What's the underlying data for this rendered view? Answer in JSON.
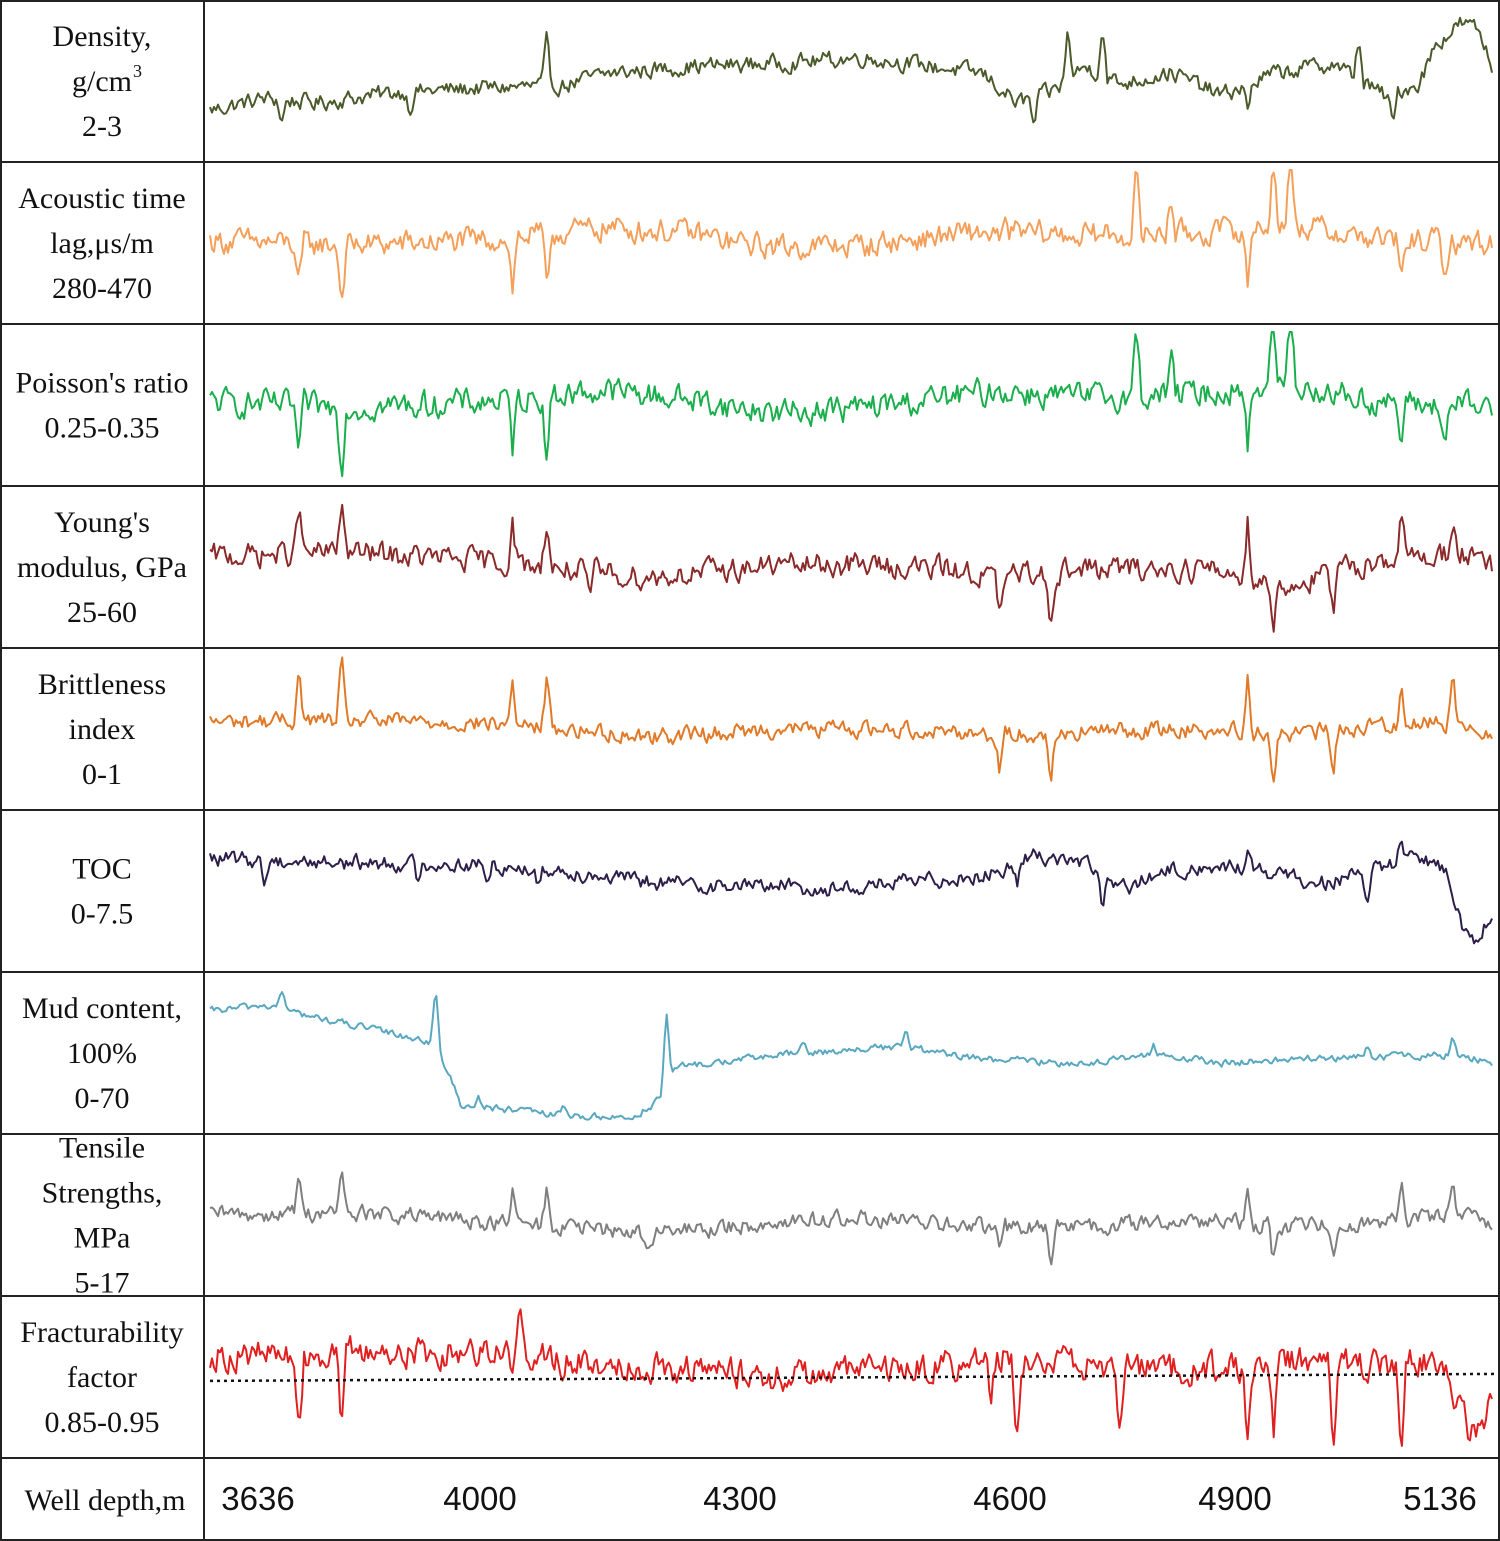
{
  "chart_data": {
    "type": "line",
    "title": "",
    "xlabel": "Well depth,m",
    "xlim": [
      3636,
      5136
    ],
    "x_ticks": [
      {
        "label": "3636",
        "value": 3636
      },
      {
        "label": "4000",
        "value": 4000
      },
      {
        "label": "4300",
        "value": 4300
      },
      {
        "label": "4600",
        "value": 4600
      },
      {
        "label": "4900",
        "value": 4900
      },
      {
        "label": "5136",
        "value": 5136
      }
    ],
    "panels": [
      {
        "id": "density",
        "label_lines": [
          "Density,",
          "g/cm",
          "2-3"
        ],
        "unit_superscript": "3",
        "range": [
          2,
          3
        ],
        "color": "#4a5a2a",
        "profile": [
          [
            3636,
            2.3
          ],
          [
            3700,
            2.38
          ],
          [
            3760,
            2.35
          ],
          [
            3850,
            2.42
          ],
          [
            3950,
            2.45
          ],
          [
            4050,
            2.47
          ],
          [
            4100,
            2.55
          ],
          [
            4200,
            2.6
          ],
          [
            4300,
            2.62
          ],
          [
            4400,
            2.66
          ],
          [
            4480,
            2.6
          ],
          [
            4540,
            2.55
          ],
          [
            4580,
            2.35
          ],
          [
            4620,
            2.42
          ],
          [
            4660,
            2.6
          ],
          [
            4700,
            2.48
          ],
          [
            4760,
            2.56
          ],
          [
            4820,
            2.4
          ],
          [
            4880,
            2.55
          ],
          [
            4950,
            2.62
          ],
          [
            5010,
            2.4
          ],
          [
            5050,
            2.48
          ],
          [
            5070,
            2.75
          ],
          [
            5100,
            2.9
          ],
          [
            5120,
            2.85
          ],
          [
            5136,
            2.6
          ]
        ],
        "noise": 0.05,
        "spikes": [
          [
            3720,
            -0.15
          ],
          [
            3870,
            -0.12
          ],
          [
            4030,
            0.3
          ],
          [
            4600,
            -0.2
          ],
          [
            4640,
            0.35
          ],
          [
            4680,
            0.35
          ],
          [
            4850,
            -0.18
          ],
          [
            4980,
            0.3
          ],
          [
            5020,
            -0.25
          ]
        ]
      },
      {
        "id": "acoustic",
        "label_lines": [
          "Acoustic time",
          "lag,μs/m",
          "280-470"
        ],
        "range": [
          280,
          470
        ],
        "color": "#f4a05a",
        "profile": [
          [
            3636,
            378
          ],
          [
            3800,
            372
          ],
          [
            3950,
            378
          ],
          [
            4100,
            395
          ],
          [
            4200,
            388
          ],
          [
            4250,
            375
          ],
          [
            4300,
            370
          ],
          [
            4400,
            372
          ],
          [
            4500,
            385
          ],
          [
            4560,
            390
          ],
          [
            4650,
            385
          ],
          [
            4800,
            388
          ],
          [
            4900,
            400
          ],
          [
            5000,
            380
          ],
          [
            5136,
            375
          ]
        ],
        "noise": 14,
        "spikes": [
          [
            3740,
            -60
          ],
          [
            3790,
            -75
          ],
          [
            3990,
            -70
          ],
          [
            4030,
            -75
          ],
          [
            4560,
            40
          ],
          [
            4560,
            -55
          ],
          [
            4720,
            80
          ],
          [
            4760,
            55
          ],
          [
            4850,
            -75
          ],
          [
            4880,
            90
          ],
          [
            4900,
            100
          ],
          [
            5030,
            -60
          ],
          [
            5080,
            -55
          ]
        ]
      },
      {
        "id": "poisson",
        "label_lines": [
          "Poisson's ratio",
          "0.25-0.35"
        ],
        "range": [
          0.25,
          0.35
        ],
        "color": "#1aae4c",
        "profile": [
          [
            3636,
            0.302
          ],
          [
            3800,
            0.298
          ],
          [
            3950,
            0.302
          ],
          [
            4100,
            0.31
          ],
          [
            4200,
            0.304
          ],
          [
            4250,
            0.298
          ],
          [
            4300,
            0.295
          ],
          [
            4400,
            0.298
          ],
          [
            4500,
            0.305
          ],
          [
            4560,
            0.31
          ],
          [
            4650,
            0.305
          ],
          [
            4800,
            0.308
          ],
          [
            4900,
            0.315
          ],
          [
            5000,
            0.302
          ],
          [
            5136,
            0.298
          ]
        ],
        "noise": 0.008,
        "spikes": [
          [
            3740,
            -0.035
          ],
          [
            3790,
            -0.04
          ],
          [
            3990,
            -0.035
          ],
          [
            4030,
            -0.04
          ],
          [
            4560,
            0.025
          ],
          [
            4560,
            -0.025
          ],
          [
            4720,
            0.045
          ],
          [
            4760,
            0.03
          ],
          [
            4850,
            -0.04
          ],
          [
            4880,
            0.05
          ],
          [
            4900,
            0.055
          ],
          [
            5030,
            -0.03
          ],
          [
            5080,
            -0.03
          ]
        ]
      },
      {
        "id": "young",
        "label_lines": [
          "Young's",
          "modulus, GPa",
          "25-60"
        ],
        "range": [
          25,
          60
        ],
        "color": "#8b2a2a",
        "profile": [
          [
            3636,
            45
          ],
          [
            3800,
            46
          ],
          [
            3950,
            44
          ],
          [
            4050,
            42
          ],
          [
            4150,
            40
          ],
          [
            4250,
            42
          ],
          [
            4300,
            43
          ],
          [
            4400,
            43
          ],
          [
            4500,
            42
          ],
          [
            4560,
            40
          ],
          [
            4650,
            42
          ],
          [
            4800,
            42
          ],
          [
            4900,
            38
          ],
          [
            5000,
            44
          ],
          [
            5100,
            46
          ],
          [
            5136,
            42
          ]
        ],
        "noise": 2.5,
        "spikes": [
          [
            3740,
            12
          ],
          [
            3790,
            14
          ],
          [
            3990,
            10
          ],
          [
            4030,
            12
          ],
          [
            4080,
            -8
          ],
          [
            4560,
            -10
          ],
          [
            4620,
            -12
          ],
          [
            4850,
            14
          ],
          [
            4880,
            -12
          ],
          [
            4950,
            -10
          ],
          [
            5030,
            10
          ],
          [
            5090,
            8
          ]
        ]
      },
      {
        "id": "brittleness",
        "label_lines": [
          "Brittleness",
          "index",
          "0-1"
        ],
        "range": [
          0,
          1
        ],
        "color": "#e07a28",
        "profile": [
          [
            3636,
            0.55
          ],
          [
            3800,
            0.56
          ],
          [
            3950,
            0.54
          ],
          [
            4050,
            0.5
          ],
          [
            4150,
            0.45
          ],
          [
            4250,
            0.48
          ],
          [
            4300,
            0.5
          ],
          [
            4400,
            0.5
          ],
          [
            4500,
            0.49
          ],
          [
            4560,
            0.46
          ],
          [
            4650,
            0.48
          ],
          [
            4800,
            0.5
          ],
          [
            4900,
            0.46
          ],
          [
            5000,
            0.52
          ],
          [
            5100,
            0.55
          ],
          [
            5136,
            0.48
          ]
        ],
        "noise": 0.05,
        "spikes": [
          [
            3740,
            0.35
          ],
          [
            3790,
            0.4
          ],
          [
            3990,
            0.3
          ],
          [
            4030,
            0.35
          ],
          [
            4560,
            -0.25
          ],
          [
            4620,
            -0.35
          ],
          [
            4850,
            0.4
          ],
          [
            4880,
            -0.35
          ],
          [
            4950,
            -0.3
          ],
          [
            5030,
            0.3
          ],
          [
            5090,
            0.3
          ]
        ]
      },
      {
        "id": "toc",
        "label_lines": [
          "TOC",
          "0-7.5"
        ],
        "range": [
          0,
          7.5
        ],
        "color": "#2e1f4a",
        "profile": [
          [
            3636,
            5.4
          ],
          [
            3800,
            5.2
          ],
          [
            3950,
            5.1
          ],
          [
            4050,
            4.8
          ],
          [
            4150,
            4.2
          ],
          [
            4250,
            4.0
          ],
          [
            4300,
            4.1
          ],
          [
            4350,
            3.8
          ],
          [
            4450,
            4.2
          ],
          [
            4550,
            4.6
          ],
          [
            4600,
            5.6
          ],
          [
            4660,
            5.2
          ],
          [
            4700,
            3.8
          ],
          [
            4760,
            4.8
          ],
          [
            4850,
            5.0
          ],
          [
            4900,
            4.4
          ],
          [
            4950,
            4.2
          ],
          [
            5000,
            4.8
          ],
          [
            5050,
            5.5
          ],
          [
            5080,
            5.0
          ],
          [
            5100,
            2.0
          ],
          [
            5120,
            1.0
          ],
          [
            5136,
            2.8
          ]
        ],
        "noise": 0.35,
        "spikes": [
          [
            3700,
            -1.2
          ],
          [
            3880,
            -1.0
          ],
          [
            3960,
            -1.0
          ],
          [
            4020,
            -1.0
          ],
          [
            4580,
            -1.2
          ],
          [
            4680,
            -1.5
          ],
          [
            4850,
            1.0
          ],
          [
            4990,
            -1.3
          ],
          [
            5030,
            1.5
          ]
        ]
      },
      {
        "id": "mud",
        "label_lines": [
          "Mud content,",
          "100%",
          "0-70"
        ],
        "range": [
          0,
          70
        ],
        "color": "#5aa8c0",
        "profile": [
          [
            3636,
            55
          ],
          [
            3700,
            58
          ],
          [
            3760,
            52
          ],
          [
            3830,
            46
          ],
          [
            3900,
            40
          ],
          [
            3930,
            10
          ],
          [
            3980,
            8
          ],
          [
            4050,
            5
          ],
          [
            4130,
            4
          ],
          [
            4160,
            12
          ],
          [
            4180,
            28
          ],
          [
            4220,
            30
          ],
          [
            4300,
            34
          ],
          [
            4400,
            37
          ],
          [
            4450,
            38
          ],
          [
            4500,
            34
          ],
          [
            4550,
            32
          ],
          [
            4650,
            30
          ],
          [
            4700,
            32
          ],
          [
            4750,
            34
          ],
          [
            4820,
            30
          ],
          [
            4900,
            32
          ],
          [
            5000,
            33
          ],
          [
            5100,
            34
          ],
          [
            5136,
            30
          ]
        ],
        "noise": 1.5,
        "spikes": [
          [
            3720,
            10
          ],
          [
            3900,
            25
          ],
          [
            3950,
            5
          ],
          [
            4050,
            5
          ],
          [
            4170,
            35
          ],
          [
            4330,
            6
          ],
          [
            4450,
            8
          ],
          [
            4740,
            6
          ],
          [
            4990,
            5
          ],
          [
            5090,
            8
          ]
        ]
      },
      {
        "id": "tensile",
        "label_lines": [
          "Tensile",
          "Strengths,",
          "MPa",
          "5-17"
        ],
        "range": [
          5,
          17
        ],
        "color": "#7f7f7f",
        "profile": [
          [
            3636,
            11
          ],
          [
            3800,
            11.2
          ],
          [
            3950,
            10.5
          ],
          [
            4050,
            10
          ],
          [
            4150,
            9.5
          ],
          [
            4250,
            10
          ],
          [
            4300,
            10.5
          ],
          [
            4400,
            10.7
          ],
          [
            4500,
            10.2
          ],
          [
            4560,
            10
          ],
          [
            4650,
            10
          ],
          [
            4800,
            10.6
          ],
          [
            4900,
            10
          ],
          [
            5000,
            10.5
          ],
          [
            5100,
            11
          ],
          [
            5136,
            10.5
          ]
        ],
        "noise": 0.6,
        "spikes": [
          [
            3740,
            3.5
          ],
          [
            3790,
            3.8
          ],
          [
            3990,
            2.5
          ],
          [
            4030,
            3.0
          ],
          [
            4150,
            -1.5
          ],
          [
            4560,
            -2.5
          ],
          [
            4620,
            -3.0
          ],
          [
            4850,
            3.5
          ],
          [
            4880,
            -3.0
          ],
          [
            4950,
            -2.5
          ],
          [
            5030,
            3.0
          ],
          [
            5090,
            2.5
          ]
        ]
      },
      {
        "id": "fracturability",
        "label_lines": [
          "Fracturability",
          "factor",
          "0.85-0.95"
        ],
        "range": [
          0.85,
          0.95
        ],
        "color": "#e02020",
        "threshold": 0.898,
        "profile": [
          [
            3636,
            0.915
          ],
          [
            3700,
            0.915
          ],
          [
            3800,
            0.918
          ],
          [
            3900,
            0.916
          ],
          [
            3960,
            0.92
          ],
          [
            4000,
            0.918
          ],
          [
            4050,
            0.91
          ],
          [
            4150,
            0.908
          ],
          [
            4250,
            0.903
          ],
          [
            4300,
            0.9
          ],
          [
            4400,
            0.905
          ],
          [
            4500,
            0.908
          ],
          [
            4560,
            0.915
          ],
          [
            4650,
            0.908
          ],
          [
            4800,
            0.905
          ],
          [
            4900,
            0.91
          ],
          [
            5000,
            0.908
          ],
          [
            5050,
            0.912
          ],
          [
            5080,
            0.905
          ],
          [
            5110,
            0.86
          ],
          [
            5125,
            0.862
          ],
          [
            5136,
            0.89
          ]
        ],
        "noise": 0.009,
        "spikes": [
          [
            3740,
            -0.06
          ],
          [
            3790,
            -0.06
          ],
          [
            3990,
            -0.02
          ],
          [
            4000,
            0.03
          ],
          [
            4550,
            -0.04
          ],
          [
            4580,
            -0.055
          ],
          [
            4700,
            -0.04
          ],
          [
            4850,
            -0.06
          ],
          [
            4880,
            -0.05
          ],
          [
            4950,
            -0.055
          ],
          [
            5030,
            -0.06
          ]
        ]
      }
    ]
  }
}
